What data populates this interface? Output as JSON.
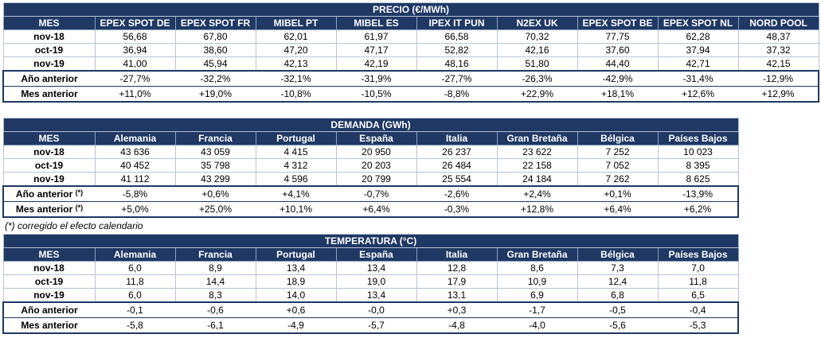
{
  "tables": [
    {
      "title": "PRECIO (€/MWh)",
      "headers": [
        "MES",
        "EPEX SPOT DE",
        "EPEX SPOT FR",
        "MIBEL PT",
        "MIBEL ES",
        "IPEX IT PUN",
        "N2EX UK",
        "EPEX SPOT BE",
        "EPEX SPOT NL",
        "NORD POOL"
      ],
      "rows": [
        [
          "nov-18",
          "56,68",
          "67,80",
          "62,01",
          "61,97",
          "66,58",
          "70,32",
          "77,75",
          "62,28",
          "48,37"
        ],
        [
          "oct-19",
          "36,94",
          "38,60",
          "47,20",
          "47,17",
          "52,82",
          "42,16",
          "37,60",
          "37,94",
          "37,32"
        ],
        [
          "nov-19",
          "41,00",
          "45,94",
          "42,13",
          "42,19",
          "48,16",
          "51,80",
          "44,40",
          "42,71",
          "42,15"
        ]
      ],
      "summary_rows": [
        {
          "label": "Año anterior",
          "values": [
            "-27,7%",
            "-32,2%",
            "-32,1%",
            "-31,9%",
            "-27,7%",
            "-26,3%",
            "-42,9%",
            "-31,4%",
            "-12,9%"
          ]
        },
        {
          "label": "Mes anterior",
          "values": [
            "+11,0%",
            "+19,0%",
            "-10,8%",
            "-10,5%",
            "-8,8%",
            "+22,9%",
            "+18,1%",
            "+12,6%",
            "+12,9%"
          ]
        }
      ]
    },
    {
      "title": "DEMANDA (GWh)",
      "headers": [
        "MES",
        "Alemania",
        "Francia",
        "Portugal",
        "España",
        "Italia",
        "Gran Bretaña",
        "Bélgica",
        "Países Bajos"
      ],
      "rows": [
        [
          "nov-18",
          "43 636",
          "43 059",
          "4 415",
          "20 950",
          "26 237",
          "23 622",
          "7 252",
          "10 023"
        ],
        [
          "oct-19",
          "40 452",
          "35 798",
          "4 312",
          "20 203",
          "26 484",
          "22 158",
          "7 052",
          "8 395"
        ],
        [
          "nov-19",
          "41 112",
          "43 299",
          "4 596",
          "20 799",
          "25 554",
          "24 184",
          "7 262",
          "8 625"
        ]
      ],
      "summary_rows": [
        {
          "label": "Año anterior",
          "note": "(*)",
          "values": [
            "-5,8%",
            "+0,6%",
            "+4,1%",
            "-0,7%",
            "-2,6%",
            "+2,4%",
            "+0,1%",
            "-13,9%"
          ]
        },
        {
          "label": "Mes anterior",
          "note": "(*)",
          "values": [
            "+5,0%",
            "+25,0%",
            "+10,1%",
            "+6,4%",
            "-0,3%",
            "+12,8%",
            "+6,4%",
            "+6,2%"
          ]
        }
      ]
    },
    {
      "title": "TEMPERATURA (°C)",
      "headers": [
        "MES",
        "Alemania",
        "Francia",
        "Portugal",
        "España",
        "Italia",
        "Gran Bretaña",
        "Bélgica",
        "Países Bajos"
      ],
      "rows": [
        [
          "nov-18",
          "6,0",
          "8,9",
          "13,4",
          "13,4",
          "12,8",
          "8,6",
          "7,3",
          "7,0"
        ],
        [
          "oct-19",
          "11,8",
          "14,4",
          "18,9",
          "19,0",
          "17,9",
          "10,9",
          "12,4",
          "11,8"
        ],
        [
          "nov-19",
          "6,0",
          "8,3",
          "14,0",
          "13,4",
          "13,1",
          "6,9",
          "6,8",
          "6,5"
        ]
      ],
      "summary_rows": [
        {
          "label": "Año anterior",
          "values": [
            "-0,1",
            "-0,6",
            "+0,6",
            "-0,0",
            "+0,3",
            "-1,7",
            "-0,5",
            "-0,4"
          ]
        },
        {
          "label": "Mes anterior",
          "values": [
            "-5,8",
            "-6,1",
            "-4,9",
            "-5,7",
            "-4,8",
            "-4,0",
            "-5,6",
            "-5,3"
          ]
        }
      ]
    }
  ],
  "footnote": "(*) corregido el efecto calendario"
}
